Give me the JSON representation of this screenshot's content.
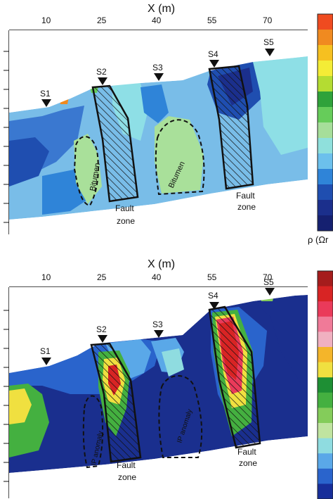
{
  "top_panel": {
    "xaxis_label": "X (m)",
    "xticks": [
      "10",
      "25",
      "40",
      "55",
      "70"
    ],
    "stations": [
      "S1",
      "S2",
      "S3",
      "S4",
      "S5"
    ],
    "annotations": {
      "bitumen_left": "Bitumen",
      "bitumen_right": "Bitumen",
      "fault_left_1": "Fault",
      "fault_left_2": "zone",
      "fault_right_1": "Fault",
      "fault_right_2": "zone"
    },
    "colorbar_label": "ρ (Ωr"
  },
  "bottom_panel": {
    "xaxis_label": "X (m)",
    "xticks": [
      "10",
      "25",
      "40",
      "55",
      "70"
    ],
    "stations": [
      "S1",
      "S2",
      "S3",
      "S4",
      "S5"
    ],
    "annotations": {
      "ip_left": "IP anomaly",
      "ip_right": "IP anomaly",
      "fault_left_1": "Fault",
      "fault_left_2": "zone",
      "fault_right_1": "Fault",
      "fault_right_2": "zone"
    }
  },
  "colors": {
    "colorbar_top": [
      "#ef4b20",
      "#f08a20",
      "#f6c020",
      "#f4ec36",
      "#b4dc32",
      "#2fa23a",
      "#66cc5a",
      "#a6de9a",
      "#8fe0dc",
      "#6cc0ec",
      "#2f84d8",
      "#1f4eb0",
      "#1b2f8c",
      "#152070"
    ],
    "colorbar_bottom": [
      "#a51c1c",
      "#d82424",
      "#ea3a5a",
      "#f07a98",
      "#f0b0c0",
      "#f4b52a",
      "#f0e040",
      "#1e8f34",
      "#44b040",
      "#84cc5a",
      "#c0e4a0",
      "#8fdce0",
      "#5aa8e8",
      "#2a64cc",
      "#172e9a"
    ],
    "deep_blue": "#1a2f8e",
    "light_blue": "#79bde8",
    "cyan": "#8edfe6",
    "pale_green": "#a9e09a",
    "mid_blue": "#3a78d0"
  }
}
